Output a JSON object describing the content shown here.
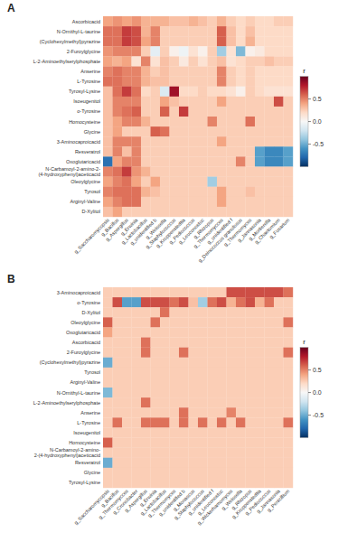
{
  "chart_data": [
    {
      "type": "heatmap",
      "title": "A",
      "y": [
        "Ascorbicacid",
        "N-Ornithyl-L-taurine",
        "(Cyclohexylmethyl)pyrazine",
        "2-Furoylglycine",
        "L-2-Aminoethylserylphosphate",
        "Anserine",
        "L-Tyrosine",
        "Tyrosyl-Lysine",
        "Isoeugenitol",
        "o-Tyrosine",
        "Homocysteine",
        "Glycine",
        "3-Aminocaproicacid",
        "Resveratrol",
        "Oxoglutaricacid",
        "N-Carbamoyl-2-amino-2-\n(4-hydroxyphenyl)aceticacid",
        "Oleoylglycine",
        "Tyrosol",
        "Arginyl-Valine",
        "D-Xylitol"
      ],
      "x": [
        "g_Saccharomycopsis",
        "g_Bacillus",
        "g_Aspergillus",
        "g_Erwinia",
        "g_Lactobacillus",
        "g_unidentified b",
        "g_Weissella",
        "g_Staphylococcus",
        "g_Kroppenstedtia",
        "g_Pediococcus",
        "g_Leuconostoc",
        "g_Rhizopus",
        "g_Thermomycces",
        "g_unidentified f",
        "g_Deinococcus granulosus",
        "g_Thermomyces",
        "g_Jannasonia",
        "g_Mortierella",
        "g_Chaetomium",
        "g_Fusarium"
      ],
      "values": [
        [
          0.4,
          0.45,
          0.4,
          0.45,
          0.35,
          0.35,
          0.35,
          0.3,
          0.3,
          0.35,
          0.3,
          0.25,
          0.35,
          0.25,
          0.2,
          0.25,
          0.2,
          0.2,
          0.25,
          0.25
        ],
        [
          0.55,
          0.55,
          0.7,
          0.65,
          0.35,
          0.5,
          0.25,
          0.25,
          0.25,
          0.25,
          0.25,
          0.25,
          0.6,
          0.3,
          0.2,
          0.3,
          0.2,
          0.2,
          0.2,
          0.2
        ],
        [
          0.55,
          0.55,
          0.7,
          0.65,
          0.4,
          0.5,
          0.25,
          0.25,
          0.25,
          0.25,
          0.25,
          0.25,
          0.6,
          0.3,
          0.2,
          0.35,
          0.2,
          0.2,
          0.2,
          0.2
        ],
        [
          0.45,
          0.5,
          0.5,
          0.5,
          0.25,
          -0.1,
          0.25,
          0.05,
          -0.05,
          0.15,
          0.05,
          0.25,
          -0.35,
          0.15,
          -0.45,
          0.05,
          0.1,
          0.2,
          0.2,
          0.2
        ],
        [
          0.4,
          0.35,
          0.4,
          0.15,
          0.5,
          0.15,
          0.3,
          0.25,
          0.1,
          0.25,
          0.15,
          0.25,
          0.3,
          0.15,
          0.2,
          0.25,
          0.25,
          0.3,
          0.25,
          0.25
        ],
        [
          0.5,
          0.55,
          0.5,
          0.5,
          0.35,
          0.25,
          0.3,
          0.25,
          0.25,
          0.25,
          0.25,
          0.25,
          0.5,
          0.25,
          0.2,
          0.25,
          0.2,
          0.2,
          0.2,
          0.2
        ],
        [
          0.55,
          0.55,
          0.5,
          0.5,
          0.35,
          0.3,
          0.3,
          0.25,
          0.25,
          0.25,
          0.25,
          0.25,
          0.5,
          0.25,
          0.2,
          0.25,
          0.2,
          0.2,
          0.2,
          0.2
        ],
        [
          0.3,
          0.55,
          0.7,
          0.55,
          0.2,
          0.25,
          -0.15,
          0.85,
          0.2,
          0.2,
          0.25,
          0.2,
          0.2,
          0.15,
          0.05,
          0.25,
          0.2,
          0.15,
          0.15,
          0.15
        ],
        [
          0.3,
          0.5,
          0.5,
          0.5,
          0.25,
          0.25,
          0.4,
          0.3,
          0.25,
          0.25,
          0.25,
          0.25,
          0.4,
          0.25,
          0.25,
          0.25,
          0.25,
          0.25,
          0.65,
          0.25
        ],
        [
          0.3,
          0.5,
          0.55,
          0.6,
          0.25,
          0.25,
          0.6,
          0.25,
          0.7,
          0.25,
          0.25,
          0.25,
          0.25,
          0.25,
          0.25,
          0.25,
          0.25,
          0.25,
          0.25,
          0.25
        ],
        [
          0.3,
          0.4,
          0.5,
          0.5,
          0.35,
          0.25,
          0.25,
          0.25,
          0.25,
          0.25,
          0.25,
          0.5,
          0.25,
          0.25,
          0.25,
          0.55,
          0.25,
          0.25,
          0.25,
          0.25
        ],
        [
          0.3,
          0.4,
          0.25,
          0.25,
          0.25,
          0.6,
          0.55,
          0.25,
          0.25,
          0.25,
          0.25,
          0.25,
          0.25,
          0.25,
          0.25,
          0.25,
          0.25,
          0.25,
          0.25,
          0.25
        ],
        [
          0.3,
          0.5,
          0.5,
          0.5,
          0.25,
          0.25,
          0.25,
          0.25,
          0.25,
          0.25,
          0.25,
          0.25,
          0.4,
          0.25,
          0.25,
          0.25,
          0.25,
          0.25,
          0.25,
          0.25
        ],
        [
          0.3,
          0.5,
          0.3,
          0.5,
          0.25,
          0.25,
          0.25,
          0.25,
          0.25,
          0.25,
          0.25,
          0.25,
          0.25,
          0.25,
          0.25,
          0.25,
          -0.55,
          -0.65,
          -0.65,
          -0.55
        ],
        [
          -0.75,
          0.4,
          0.5,
          0.5,
          0.25,
          0.25,
          0.25,
          0.25,
          0.25,
          0.25,
          0.25,
          0.25,
          0.25,
          0.25,
          0.5,
          0.25,
          -0.55,
          -0.65,
          -0.65,
          -0.55
        ],
        [
          0.5,
          0.55,
          0.7,
          0.45,
          0.35,
          0.25,
          0.25,
          0.25,
          0.25,
          0.25,
          0.25,
          0.25,
          0.25,
          0.25,
          0.25,
          0.25,
          0.25,
          0.25,
          0.25,
          0.25
        ],
        [
          0.4,
          0.5,
          0.55,
          0.4,
          0.25,
          0.4,
          0.25,
          0.25,
          0.25,
          0.25,
          0.25,
          -0.35,
          0.25,
          0.25,
          0.25,
          0.25,
          0.25,
          0.25,
          0.25,
          0.25
        ],
        [
          0.5,
          0.55,
          0.55,
          0.55,
          0.35,
          0.3,
          0.25,
          0.25,
          0.25,
          0.25,
          0.25,
          0.25,
          0.4,
          0.25,
          0.25,
          0.3,
          0.25,
          0.25,
          0.25,
          0.25
        ],
        [
          0.4,
          0.5,
          0.55,
          0.55,
          0.25,
          0.25,
          0.25,
          0.25,
          0.25,
          0.25,
          0.25,
          0.25,
          0.4,
          0.25,
          0.25,
          0.25,
          0.25,
          0.25,
          0.25,
          0.25
        ],
        [
          0.3,
          0.4,
          0.25,
          0.25,
          0.25,
          0.25,
          0.25,
          0.25,
          0.25,
          0.25,
          0.25,
          0.25,
          0.25,
          0.25,
          0.25,
          0.25,
          0.25,
          0.25,
          0.25,
          0.25
        ]
      ],
      "color_range": [
        -1.0,
        1.0
      ],
      "color_ticks": [
        -0.5,
        {
          "value": 0.0,
          "label": "0.0"
        },
        0.5
      ],
      "colorbar_label": "r"
    },
    {
      "type": "heatmap",
      "title": "B",
      "y": [
        "3-Aminocaproicacid",
        "o-Tyrosine",
        "D-Xylitol",
        "Oleoylglycine",
        "Oxoglutaricacid",
        "Ascorbicacid",
        "2-Furoylglycine",
        "(Cyclohexylmethyl)pyrazine",
        "Tyrosol",
        "Arginyl-Valine",
        "N-Ornithyl-L-taurine",
        "L-2-Aminoethylserylphosphate",
        "Anserine",
        "L-Tyrosine",
        "Isoeugenitol",
        "Homocysteine",
        "N-Carbamoyl-2-amino-\n2-(4-hydroxyphenyl)aceticacid",
        "Resveratrol",
        "Glycine",
        "Tyrosyl-Lysine"
      ],
      "x": [
        "g_Saccharomycopsis",
        "g_Bacillus",
        "g_Thermomycces",
        "g_Cronobacter",
        "g_Aspergillus",
        "g_Erwinia",
        "g_Lactobacillus",
        "g_Thermomyces",
        "g_unidentified b",
        "g_Monascus",
        "g_Staphylococcus",
        "g_unidentified f",
        "g_Leuconostoc",
        "g_Wickerhamomyces",
        "g_Weissella",
        "g_Rhizopus",
        "g_Kroppenstedtia",
        "g_Pediococcus",
        "g_Jannasonia",
        "g_Penicillium"
      ],
      "values": [
        [
          0.25,
          0.25,
          0.25,
          0.25,
          0.25,
          0.25,
          0.25,
          0.25,
          0.25,
          0.25,
          0.25,
          0.25,
          0.25,
          0.65,
          0.65,
          0.65,
          0.65,
          0.65,
          0.65,
          0.55
        ],
        [
          0.25,
          0.65,
          -0.55,
          -0.55,
          0.65,
          0.65,
          0.65,
          0.55,
          0.65,
          0.3,
          -0.35,
          0.55,
          0.65,
          0.35,
          0.55,
          0.65,
          0.35,
          0.55,
          0.25,
          0.25
        ],
        [
          0.25,
          0.25,
          0.25,
          0.25,
          0.25,
          0.25,
          0.55,
          0.25,
          0.25,
          0.25,
          0.25,
          0.25,
          0.25,
          0.25,
          0.25,
          0.25,
          0.25,
          0.25,
          0.25,
          0.25
        ],
        [
          0.6,
          0.25,
          0.25,
          0.25,
          0.25,
          0.55,
          0.25,
          0.25,
          0.25,
          0.25,
          0.25,
          0.25,
          0.25,
          0.25,
          0.25,
          0.25,
          0.25,
          0.25,
          0.25,
          0.55
        ],
        [
          0.4,
          0.25,
          0.25,
          0.25,
          0.25,
          0.25,
          0.25,
          0.25,
          0.25,
          0.25,
          0.25,
          0.25,
          0.25,
          0.25,
          0.25,
          0.25,
          0.25,
          0.25,
          0.25,
          0.25
        ],
        [
          0.25,
          0.25,
          0.25,
          0.25,
          0.55,
          0.25,
          0.25,
          0.25,
          0.25,
          0.25,
          0.25,
          0.25,
          0.25,
          0.25,
          0.25,
          0.25,
          0.25,
          0.25,
          0.25,
          0.25
        ],
        [
          0.25,
          0.25,
          0.25,
          0.25,
          0.55,
          0.25,
          0.25,
          0.25,
          0.55,
          0.25,
          0.25,
          0.25,
          0.25,
          0.25,
          0.25,
          0.25,
          0.25,
          0.25,
          0.25,
          0.55
        ],
        [
          -0.5,
          0.25,
          0.25,
          0.25,
          0.25,
          0.25,
          0.25,
          0.25,
          0.25,
          0.25,
          0.25,
          0.25,
          0.25,
          0.25,
          0.25,
          0.25,
          0.25,
          0.25,
          0.25,
          0.25
        ],
        [
          0.25,
          0.25,
          0.25,
          0.25,
          0.25,
          0.25,
          0.25,
          0.25,
          0.25,
          0.25,
          0.25,
          0.25,
          0.25,
          0.25,
          0.25,
          0.25,
          0.25,
          0.25,
          0.25,
          0.25
        ],
        [
          0.25,
          0.25,
          0.25,
          0.25,
          0.25,
          0.25,
          0.25,
          0.25,
          0.25,
          0.25,
          0.25,
          0.25,
          0.25,
          0.25,
          0.25,
          0.25,
          0.25,
          0.25,
          0.25,
          0.25
        ],
        [
          -0.45,
          0.25,
          0.25,
          0.25,
          0.25,
          0.25,
          0.25,
          0.25,
          0.25,
          0.25,
          0.25,
          0.25,
          0.25,
          0.25,
          0.25,
          0.25,
          0.25,
          0.25,
          0.25,
          0.25
        ],
        [
          0.25,
          0.25,
          0.25,
          0.25,
          0.55,
          0.25,
          0.25,
          0.25,
          0.25,
          0.25,
          0.25,
          0.25,
          0.25,
          0.25,
          0.25,
          0.25,
          0.25,
          0.25,
          0.25,
          0.25
        ],
        [
          0.25,
          0.25,
          0.25,
          0.25,
          0.25,
          0.25,
          0.25,
          0.25,
          0.55,
          0.25,
          0.25,
          0.25,
          0.25,
          0.5,
          0.25,
          0.25,
          0.25,
          0.25,
          0.25,
          0.25
        ],
        [
          0.25,
          0.55,
          0.25,
          0.25,
          0.55,
          0.55,
          0.55,
          0.25,
          0.55,
          0.25,
          0.55,
          0.25,
          0.55,
          0.25,
          0.55,
          0.25,
          0.25,
          0.25,
          0.25,
          0.55
        ],
        [
          0.25,
          0.25,
          0.25,
          0.25,
          0.25,
          0.25,
          0.25,
          0.25,
          0.25,
          0.25,
          0.25,
          0.25,
          0.25,
          0.25,
          0.25,
          0.25,
          0.25,
          0.25,
          0.25,
          0.25
        ],
        [
          0.6,
          0.25,
          0.25,
          0.25,
          0.25,
          0.25,
          0.25,
          0.25,
          0.25,
          0.25,
          0.25,
          0.25,
          0.25,
          0.25,
          0.25,
          0.25,
          0.25,
          0.25,
          0.25,
          0.25
        ],
        [
          0.25,
          0.25,
          0.25,
          0.25,
          0.25,
          0.25,
          0.25,
          0.25,
          0.25,
          0.25,
          0.25,
          0.25,
          0.25,
          0.25,
          0.25,
          0.25,
          0.25,
          0.25,
          0.25,
          0.25
        ],
        [
          -0.5,
          0.25,
          0.25,
          0.25,
          0.25,
          0.25,
          0.25,
          0.25,
          0.25,
          0.25,
          0.25,
          0.25,
          0.25,
          0.25,
          0.25,
          0.25,
          0.25,
          0.25,
          0.25,
          0.25
        ],
        [
          0.25,
          0.25,
          0.25,
          0.25,
          0.25,
          0.25,
          0.25,
          0.25,
          0.25,
          0.25,
          0.25,
          0.25,
          0.25,
          0.25,
          0.25,
          0.25,
          0.25,
          0.25,
          0.25,
          0.25
        ],
        [
          0.25,
          0.25,
          0.25,
          0.25,
          0.25,
          0.25,
          0.25,
          0.25,
          0.25,
          0.25,
          0.25,
          0.25,
          0.25,
          0.25,
          0.25,
          0.25,
          0.25,
          0.25,
          0.25,
          0.25
        ]
      ],
      "color_range": [
        -1.0,
        1.0
      ],
      "color_ticks": [
        -0.5,
        {
          "value": 0.0,
          "label": "0.0"
        },
        0.5
      ],
      "colorbar_label": "r"
    }
  ]
}
